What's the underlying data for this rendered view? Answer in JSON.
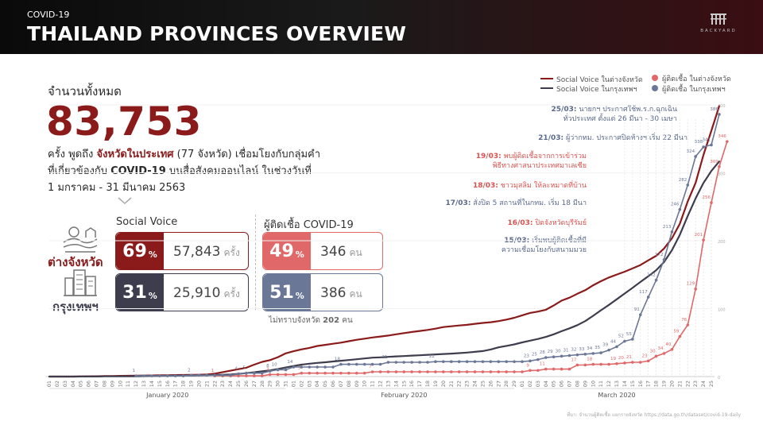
{
  "header": {
    "subtitle": "COVID-19",
    "title": "THAILAND PROVINCES OVERVIEW",
    "brand": "BACKYARD"
  },
  "summary": {
    "label": "จำนวนทั้งหมด",
    "total": "83,753",
    "desc_1": "ครั้ง พูดถึง ",
    "desc_highlight": "จังหวัดในประเทศ",
    "desc_2": " (77 จังหวัด) เชื่อมโยงกับกลุ่มคำ",
    "desc_3": "ที่เกี่ยวข้องกับ ",
    "desc_covid": "COVID-19",
    "desc_4": " บนสื่อสังคมออนไลน์ ในช่วงวันที่",
    "desc_5": "1 มกราคม - 31 มีนาคม 2563"
  },
  "columns": {
    "social": "Social Voice",
    "infected": "ผู้ติดเชื้อ COVID-19"
  },
  "categories": {
    "provinces": {
      "label": "ต่างจังหวัด",
      "social_pct": "69",
      "social_count": "57,843",
      "social_unit": "ครั้ง",
      "infected_pct": "49",
      "infected_count": "346",
      "infected_unit": "คน"
    },
    "bangkok": {
      "label": "กรุงเทพฯ",
      "social_pct": "31",
      "social_count": "25,910",
      "social_unit": "ครั้ง",
      "infected_pct": "51",
      "infected_count": "386",
      "infected_unit": "คน"
    }
  },
  "pct_symbol": "%",
  "unknown": {
    "label": "ไม่ทราบจังหวัด ",
    "value": "202",
    "unit": " คน"
  },
  "legend": {
    "social_provinces": "Social Voice ในต่างจังหวัด",
    "social_bangkok": "Social Voice ในกรุงเทพฯ",
    "infected_provinces": "ผู้ติดเชื้อ ในต่างจังหวัด",
    "infected_bangkok": "ผู้ติดเชื้อ ในกรุงเทพฯ"
  },
  "annotations": [
    {
      "date": "25/03:",
      "text": " นายกฯ ประกาศใช้พ.ร.ก.ฉุกเฉิน",
      "text2": "ทั่วประเทศ ตั้งแต่ 26 มีนา - 30 เมษา",
      "color": "#5a6a8c"
    },
    {
      "date": "21/03:",
      "text": " ผู้ว่ากทม. ประกาศปิดห้างฯ เริ่ม 22 มีนา",
      "text2": "",
      "color": "#5a6a8c"
    },
    {
      "date": "19/03:",
      "text": " พบผู้ติดเชื้อจากการเข้าร่วม",
      "text2": "พิธีทางศาสนาประเทศมาเลเซีย",
      "color": "#d9534f"
    },
    {
      "date": "18/03:",
      "text": " ชาวมุสลิม ให้ละหมาดที่บ้าน",
      "text2": "",
      "color": "#d9534f"
    },
    {
      "date": "17/03:",
      "text": " สั่งปิด 5 สถานที่ในกทม. เริ่ม 18 มีนา",
      "text2": "",
      "color": "#5a6a8c"
    },
    {
      "date": "16/03:",
      "text": " ปิดจังหวัดบุรีรัมย์",
      "text2": "",
      "color": "#d9534f"
    },
    {
      "date": "15/03:",
      "text": " เริ่มพบผู้ติดเชื้อที่มี",
      "text2": "ความเชื่อมโยงกับสนามมวย",
      "color": "#5a6a8c"
    }
  ],
  "source": "ที่มา: จำนวนผู้ติดเชื้อ แยกรายจังหวัด https://data.go.th/dataset/covid-19-daily",
  "chart_data": {
    "type": "line",
    "x_month_labels": [
      "January 2020",
      "February 2020",
      "March 2020"
    ],
    "x_tick_labels": [
      "01",
      "02",
      "03",
      "04",
      "05",
      "06",
      "07",
      "08",
      "09",
      "10",
      "11",
      "12",
      "13",
      "14",
      "15",
      "16",
      "17",
      "18",
      "19",
      "20",
      "21",
      "22",
      "23",
      "24",
      "25",
      "26",
      "27",
      "28",
      "29",
      "30",
      "31",
      "01",
      "02",
      "03",
      "04",
      "05",
      "06",
      "07",
      "08",
      "09",
      "10",
      "11",
      "12",
      "13",
      "14",
      "15",
      "16",
      "17",
      "18",
      "19",
      "20",
      "21",
      "22",
      "23",
      "24",
      "25",
      "26",
      "27",
      "28",
      "29",
      "01",
      "02",
      "03",
      "04",
      "05",
      "06",
      "07",
      "08",
      "09",
      "10",
      "11",
      "12",
      "13",
      "14",
      "15",
      "16",
      "17",
      "18",
      "19",
      "20",
      "21",
      "22",
      "23",
      "24",
      "25"
    ],
    "y_right_ticks": [
      "0",
      "100",
      "200",
      "300",
      "400"
    ],
    "y_left_max": 2400,
    "y_right_max": 400,
    "series": [
      {
        "name": "Social Voice ในต่างจังหวัด",
        "axis": "left",
        "color": "#8b1a1a",
        "values": [
          0,
          0,
          0,
          0,
          1,
          2,
          3,
          4,
          5,
          6,
          7,
          8,
          9,
          10,
          11,
          12,
          13,
          14,
          15,
          16,
          19,
          26,
          39,
          52,
          65,
          78,
          105,
          130,
          145,
          171,
          205,
          224,
          240,
          253,
          270,
          280,
          290,
          300,
          312,
          325,
          335,
          345,
          354,
          362,
          373,
          384,
          394,
          403,
          412,
          423,
          437,
          444,
          451,
          457,
          466,
          474,
          480,
          490,
          503,
          519,
          541,
          562,
          574,
          590,
          628,
          671,
          697,
          731,
          763,
          806,
          843,
          875,
          901,
          926,
          955,
          985,
          1027,
          1067,
          1131,
          1221,
          1349,
          1547,
          1711,
          1958,
          2171,
          2389
        ]
      },
      {
        "name": "Social Voice ในกรุงเทพฯ",
        "axis": "left",
        "color": "#3d3d4e",
        "values": [
          0,
          0,
          0,
          0,
          1,
          1,
          1,
          2,
          2,
          2,
          3,
          3,
          4,
          5,
          6,
          7,
          8,
          9,
          10,
          11,
          12,
          14,
          16,
          19,
          24,
          30,
          38,
          46,
          55,
          67,
          80,
          93,
          105,
          114,
          121,
          126,
          133,
          140,
          146,
          153,
          160,
          167,
          170,
          174,
          178,
          181,
          185,
          188,
          192,
          196,
          199,
          203,
          207,
          212,
          218,
          225,
          239,
          258,
          271,
          284,
          302,
          317,
          332,
          350,
          373,
          401,
          426,
          454,
          490,
          537,
          586,
          633,
          683,
          733,
          783,
          836,
          886,
          940,
          1011,
          1116,
          1251,
          1419,
          1573,
          1710,
          1816,
          1900
        ]
      },
      {
        "name": "ผู้ติดเชื้อ ในต่างจังหวัด",
        "axis": "right",
        "color": "#e06868",
        "values": [
          null,
          null,
          null,
          null,
          null,
          null,
          null,
          null,
          null,
          null,
          null,
          null,
          null,
          null,
          null,
          null,
          null,
          null,
          null,
          null,
          null,
          1,
          1,
          1,
          1,
          1,
          1,
          1,
          3,
          3,
          3,
          3,
          5,
          5,
          5,
          5,
          5,
          5,
          5,
          5,
          5,
          7,
          7,
          7,
          7,
          7,
          7,
          7,
          7,
          7,
          7,
          7,
          7,
          7,
          7,
          7,
          7,
          7,
          7,
          7,
          7,
          9,
          9,
          11,
          11,
          11,
          11,
          17,
          17,
          18,
          18,
          18,
          19,
          20,
          21,
          21,
          23,
          30,
          34,
          40,
          59,
          76,
          129,
          201,
          256,
          309,
          346
        ]
      },
      {
        "name": "ผู้ติดเชื้อ ในกรุงเทพฯ",
        "axis": "right",
        "color": "#6b7796",
        "values": [
          null,
          null,
          null,
          null,
          null,
          null,
          null,
          null,
          null,
          null,
          null,
          1,
          1,
          1,
          1,
          1,
          1,
          1,
          2,
          2,
          2,
          2,
          2,
          2,
          4,
          5,
          5,
          5,
          8,
          10,
          10,
          14,
          14,
          14,
          14,
          14,
          14,
          18,
          18,
          18,
          18,
          18,
          18,
          21,
          21,
          21,
          21,
          21,
          21,
          22,
          22,
          22,
          22,
          22,
          22,
          22,
          22,
          22,
          22,
          22,
          22,
          23,
          25,
          28,
          29,
          30,
          31,
          32,
          33,
          34,
          35,
          39,
          44,
          52,
          55,
          91,
          117,
          142,
          172,
          213,
          246,
          282,
          324,
          338,
          341,
          386
        ]
      }
    ]
  }
}
